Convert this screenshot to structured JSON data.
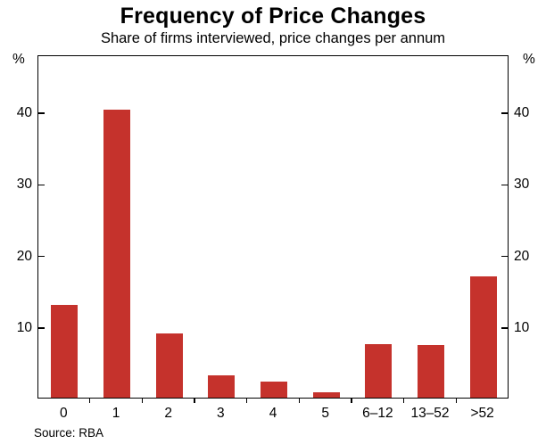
{
  "title": "Frequency of Price Changes",
  "subtitle": "Share of firms interviewed, price changes per annum",
  "source": "Source: RBA",
  "axis": {
    "unit_left": "%",
    "unit_right": "%"
  },
  "chart_data": {
    "type": "bar",
    "title": "Frequency of Price Changes",
    "subtitle": "Share of firms interviewed, price changes per annum",
    "categories": [
      "0",
      "1",
      "2",
      "3",
      "4",
      "5",
      "6–12",
      "13–52",
      ">52"
    ],
    "values": [
      13.0,
      40.3,
      9.0,
      3.1,
      2.3,
      0.8,
      7.5,
      7.3,
      17.0
    ],
    "xlabel": "price changes per annum",
    "ylabel": "%",
    "ylim": [
      0,
      48
    ],
    "yticks": [
      10,
      20,
      30,
      40
    ],
    "grid": false,
    "legend": "none",
    "bar_color": "#c5322c"
  }
}
